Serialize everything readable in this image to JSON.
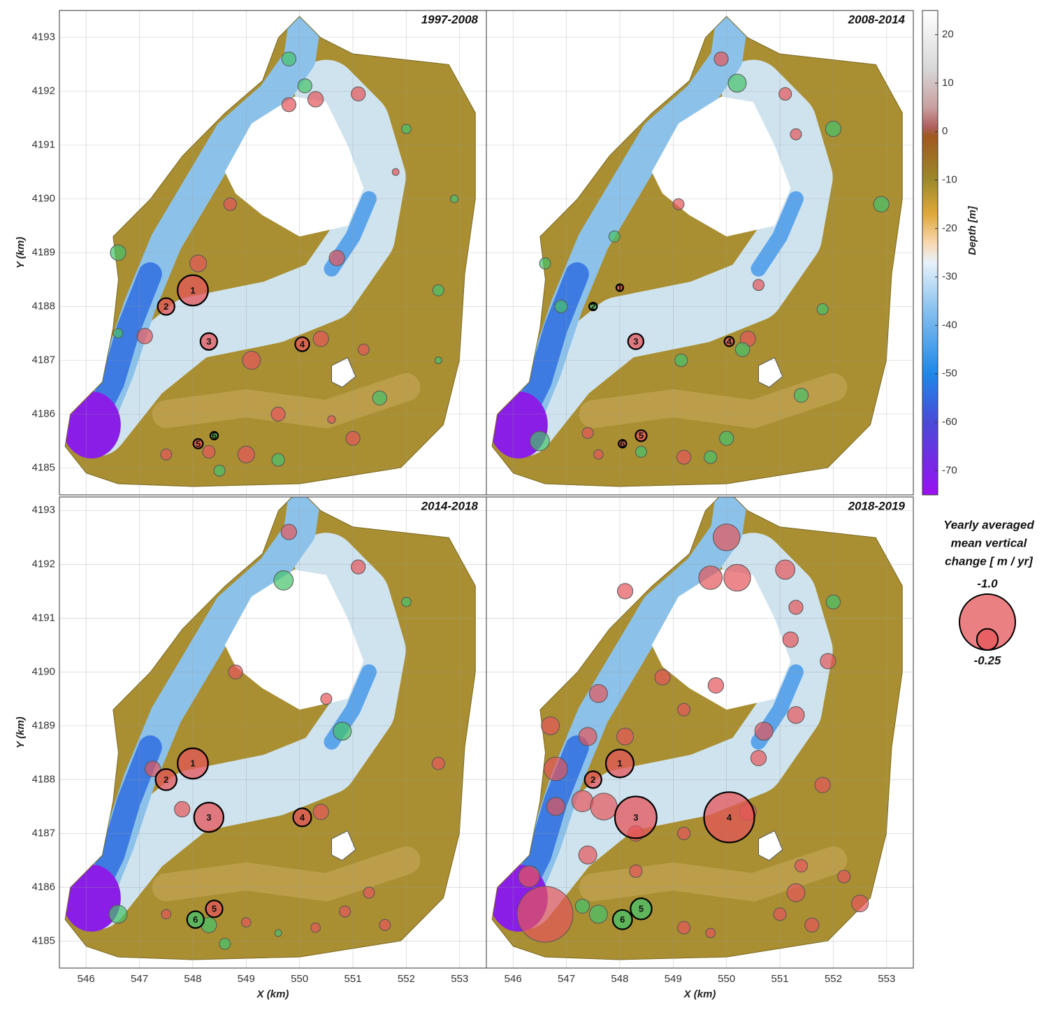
{
  "panels": [
    {
      "title": "1997-2008",
      "xlim": [
        545.5,
        553.5
      ],
      "ylim": [
        4184.5,
        4193.5
      ],
      "xticks": [
        546,
        547,
        548,
        549,
        550,
        551,
        552,
        553
      ],
      "yticks": [
        4185,
        4186,
        4187,
        4188,
        4189,
        4190,
        4191,
        4192,
        4193
      ],
      "xtick_labels": false,
      "ytick_labels": true,
      "ylabel": "Y (km)",
      "sites": {
        "labels": [
          "1",
          "2",
          "3",
          "4",
          "5",
          "6"
        ],
        "x": [
          548.0,
          547.5,
          548.3,
          550.05,
          548.1,
          548.4
        ],
        "y": [
          4188.3,
          4188.0,
          4187.35,
          4187.3,
          4185.45,
          4185.6
        ],
        "values": [
          -0.42,
          -0.18,
          -0.18,
          -0.14,
          -0.08,
          0.06
        ]
      },
      "points": {
        "x": [
          548.1,
          547.1,
          549.1,
          550.4,
          546.6,
          546.6,
          550.7,
          552.6,
          551.5,
          549.0,
          549.6,
          547.5,
          548.3,
          551.0,
          549.6,
          548.7,
          549.8,
          550.3,
          550.1,
          551.1,
          549.8,
          552.0,
          552.9,
          551.8,
          551.2,
          552.6,
          550.6,
          548.5
        ],
        "y": [
          4188.8,
          4187.45,
          4187.0,
          4187.4,
          4189.0,
          4187.5,
          4188.9,
          4188.3,
          4186.3,
          4185.25,
          4185.15,
          4185.25,
          4185.3,
          4185.55,
          4186.0,
          4189.9,
          4191.75,
          4191.85,
          4192.1,
          4191.95,
          4192.6,
          4191.3,
          4190.0,
          4190.5,
          4187.2,
          4187.0,
          4185.9,
          4184.95
        ],
        "values": [
          -0.18,
          -0.16,
          -0.2,
          -0.16,
          0.16,
          0.08,
          -0.16,
          0.1,
          0.14,
          -0.18,
          0.12,
          -0.1,
          -0.12,
          -0.14,
          -0.14,
          -0.12,
          -0.14,
          -0.16,
          0.14,
          -0.14,
          0.14,
          0.08,
          0.06,
          -0.05,
          -0.1,
          0.05,
          -0.06,
          0.1
        ]
      }
    },
    {
      "title": "2008-2014",
      "xlim": [
        545.5,
        553.5
      ],
      "ylim": [
        4184.5,
        4193.5
      ],
      "xticks": [
        546,
        547,
        548,
        549,
        550,
        551,
        552,
        553
      ],
      "yticks": [
        4185,
        4186,
        4187,
        4188,
        4189,
        4190,
        4191,
        4192,
        4193
      ],
      "xtick_labels": false,
      "ytick_labels": false,
      "sites": {
        "labels": [
          "1",
          "2",
          "3",
          "4",
          "5",
          "6"
        ],
        "x": [
          548.0,
          547.5,
          548.3,
          550.05,
          548.4,
          548.05
        ],
        "y": [
          4188.35,
          4188.0,
          4187.35,
          4187.35,
          4185.6,
          4185.45
        ],
        "values": [
          -0.03,
          0.06,
          -0.16,
          -0.08,
          -0.1,
          -0.06
        ]
      },
      "points": {
        "x": [
          546.5,
          547.4,
          547.6,
          548.4,
          549.2,
          549.7,
          550.0,
          550.4,
          550.3,
          549.15,
          546.9,
          546.6,
          547.9,
          550.6,
          551.8,
          552.0,
          552.9,
          550.2,
          549.9,
          551.1,
          551.4,
          551.3,
          549.1
        ],
        "y": [
          4185.5,
          4185.65,
          4185.25,
          4185.3,
          4185.2,
          4185.2,
          4185.55,
          4187.4,
          4187.2,
          4187.0,
          4188.0,
          4188.8,
          4189.3,
          4188.4,
          4187.95,
          4191.3,
          4189.9,
          4192.15,
          4192.6,
          4191.95,
          4186.35,
          4191.2,
          4189.9
        ],
        "values": [
          0.22,
          -0.1,
          -0.08,
          0.1,
          -0.14,
          0.12,
          0.14,
          -0.16,
          0.14,
          0.12,
          0.12,
          0.1,
          0.1,
          -0.1,
          0.1,
          0.16,
          0.16,
          0.2,
          -0.14,
          -0.12,
          0.14,
          -0.1,
          -0.1
        ]
      }
    },
    {
      "title": "2014-2018",
      "xlim": [
        545.5,
        553.5
      ],
      "ylim": [
        4184.5,
        4193.25
      ],
      "xticks": [
        546,
        547,
        548,
        549,
        550,
        551,
        552,
        553
      ],
      "yticks": [
        4185,
        4186,
        4187,
        4188,
        4189,
        4190,
        4191,
        4192,
        4193
      ],
      "xtick_labels": true,
      "ytick_labels": true,
      "ylabel": "Y (km)",
      "xlabel": "X (km)",
      "sites": {
        "labels": [
          "1",
          "2",
          "3",
          "4",
          "5",
          "6"
        ],
        "x": [
          548.0,
          547.5,
          548.3,
          550.05,
          548.4,
          548.05
        ],
        "y": [
          4188.3,
          4188.0,
          4187.3,
          4187.3,
          4185.6,
          4185.4
        ],
        "values": [
          -0.42,
          -0.25,
          -0.4,
          -0.2,
          -0.18,
          0.18
        ]
      },
      "points": {
        "x": [
          546.6,
          547.25,
          547.8,
          550.4,
          550.8,
          549.7,
          549.8,
          551.1,
          552.0,
          548.8,
          550.5,
          552.6,
          551.3,
          550.85,
          549.6,
          548.3,
          547.5,
          550.3,
          551.6,
          548.6,
          549.0
        ],
        "y": [
          4185.5,
          4188.2,
          4187.45,
          4187.4,
          4188.9,
          4191.7,
          4192.6,
          4191.95,
          4191.3,
          4190.0,
          4189.5,
          4188.3,
          4185.9,
          4185.55,
          4185.15,
          4185.3,
          4185.5,
          4185.25,
          4185.3,
          4184.95,
          4185.35
        ],
        "values": [
          0.2,
          -0.16,
          -0.16,
          -0.16,
          0.2,
          0.22,
          -0.16,
          -0.14,
          0.08,
          -0.14,
          -0.1,
          -0.12,
          -0.1,
          -0.1,
          0.05,
          0.16,
          -0.08,
          -0.08,
          -0.1,
          0.1,
          -0.08
        ]
      }
    },
    {
      "title": "2018-2019",
      "xlim": [
        545.5,
        553.5
      ],
      "ylim": [
        4184.5,
        4193.25
      ],
      "xticks": [
        546,
        547,
        548,
        549,
        550,
        551,
        552,
        553
      ],
      "yticks": [
        4185,
        4186,
        4187,
        4188,
        4189,
        4190,
        4191,
        4192,
        4193
      ],
      "xtick_labels": true,
      "ytick_labels": false,
      "xlabel": "X (km)",
      "sites": {
        "labels": [
          "1",
          "2",
          "3",
          "4",
          "5",
          "6"
        ],
        "x": [
          548.0,
          547.5,
          548.3,
          550.05,
          548.4,
          548.05
        ],
        "y": [
          4188.3,
          4188.0,
          4187.3,
          4187.3,
          4185.6,
          4185.4
        ],
        "values": [
          -0.37,
          -0.18,
          -0.66,
          -0.86,
          0.25,
          0.22
        ]
      },
      "points": {
        "x": [
          546.6,
          546.3,
          547.3,
          546.8,
          547.7,
          546.8,
          547.4,
          546.7,
          547.6,
          547.4,
          548.1,
          550.0,
          549.7,
          550.2,
          551.1,
          548.1,
          551.3,
          552.0,
          551.2,
          551.9,
          550.7,
          551.3,
          550.6,
          551.8,
          550.4,
          549.8,
          549.2,
          548.8,
          551.4,
          551.3,
          552.2,
          552.5,
          551.0,
          551.6,
          547.6,
          547.3,
          549.2,
          549.7,
          548.3,
          548.3,
          549.2
        ],
        "y": [
          4185.5,
          4186.2,
          4187.6,
          4187.5,
          4187.5,
          4188.2,
          4188.8,
          4189.0,
          4189.6,
          4186.6,
          4188.8,
          4192.5,
          4191.75,
          4191.75,
          4191.9,
          4191.5,
          4191.2,
          4191.3,
          4190.6,
          4190.2,
          4188.9,
          4189.2,
          4188.4,
          4187.9,
          4187.4,
          4189.75,
          4189.3,
          4189.9,
          4186.4,
          4185.9,
          4186.2,
          4185.7,
          4185.5,
          4185.3,
          4185.5,
          4185.65,
          4185.25,
          4185.15,
          4186.3,
          4187.0,
          4187.0
        ],
        "values": [
          -1.0,
          -0.25,
          -0.25,
          -0.2,
          -0.35,
          -0.29,
          -0.2,
          -0.2,
          -0.2,
          -0.2,
          -0.18,
          -0.35,
          -0.29,
          -0.35,
          -0.22,
          -0.16,
          -0.14,
          0.14,
          -0.16,
          -0.16,
          -0.2,
          -0.18,
          -0.16,
          -0.16,
          -0.18,
          -0.16,
          -0.12,
          -0.16,
          -0.12,
          -0.2,
          -0.12,
          -0.18,
          -0.12,
          -0.14,
          0.2,
          0.14,
          -0.12,
          -0.08,
          -0.12,
          -0.16,
          -0.12
        ]
      }
    }
  ],
  "erosion_color": "#e4565a",
  "accretion_color": "#45c26a",
  "colorbar": {
    "label": "Depth [m]",
    "lim": [
      -75,
      25
    ],
    "ticks": [
      20,
      10,
      0,
      -10,
      -20,
      -30,
      -40,
      -50,
      -60,
      -70
    ]
  },
  "legend": {
    "title": [
      "Yearly averaged",
      "mean vertical",
      "change [ m / yr]"
    ],
    "sizes": [
      {
        "value": -1.0,
        "label": "-1.0"
      },
      -0.25
    ]
  }
}
